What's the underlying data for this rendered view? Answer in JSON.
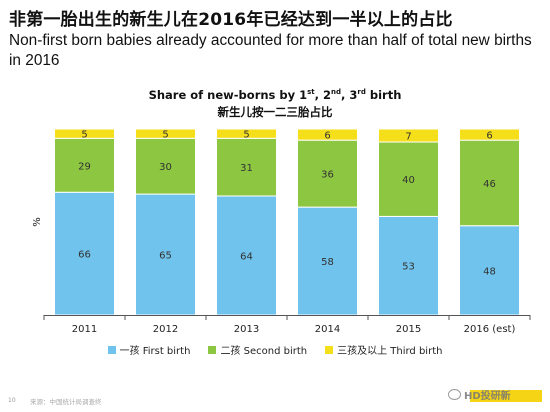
{
  "header": {
    "title_zh": "非第一胎出生的新生儿在2016年已经达到一半以上的占比",
    "title_en": "Non-first born babies already accounted for more than half of total new births in 2016"
  },
  "chart_title": {
    "prefix": "Share of new-borns by 1",
    "sup1": "st",
    "sep1": ", 2",
    "sup2": "nd",
    "sep2": ", 3",
    "sup3": "rd",
    "suffix": " birth",
    "subtitle": "新生儿按一二三胎占比"
  },
  "colors": {
    "first": "#6fc3ec",
    "second": "#8dc641",
    "third": "#f5de1a",
    "axis": "#555555",
    "text": "#222222"
  },
  "chart_data": {
    "type": "bar",
    "stacked": true,
    "categories": [
      "2011",
      "2012",
      "2013",
      "2014",
      "2015",
      "2016 (est)"
    ],
    "series": [
      {
        "name": "一孩 First birth",
        "values": [
          66,
          65,
          64,
          58,
          53,
          48
        ]
      },
      {
        "name": "二孩 Second birth",
        "values": [
          29,
          30,
          31,
          36,
          40,
          46
        ]
      },
      {
        "name": "三孩及以上 Third birth",
        "values": [
          5,
          5,
          5,
          6,
          7,
          6
        ]
      }
    ],
    "ylabel": "%",
    "ylim": [
      0,
      100
    ],
    "grid": false,
    "legend_position": "bottom"
  },
  "footer": {
    "page_number": "10",
    "source": "来源：中国统计局调查终"
  },
  "watermark": {
    "text": "HD投研新"
  }
}
